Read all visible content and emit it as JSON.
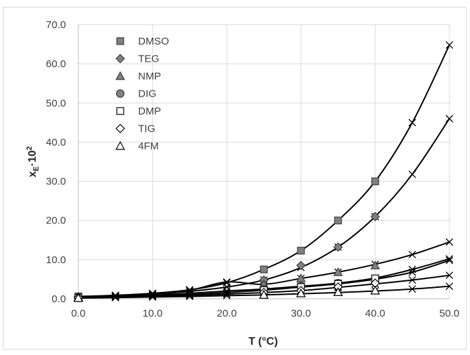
{
  "chart_data": {
    "type": "scatter",
    "xlabel": "T (°C)",
    "ylabel": {
      "base": "x",
      "sub": "E",
      "mid": "·10",
      "sup": "2"
    },
    "xlim": [
      0,
      50
    ],
    "ylim": [
      0,
      70
    ],
    "x_ticks": [
      "0.0",
      "10.0",
      "20.0",
      "30.0",
      "40.0",
      "50.0"
    ],
    "y_ticks": [
      "0.0",
      "10.0",
      "20.0",
      "30.0",
      "40.0",
      "50.0",
      "60.0",
      "70.0"
    ],
    "grid": true,
    "legend_position": "top-left",
    "series": [
      {
        "name": "DMSO",
        "marker": "square",
        "fill": "#808080",
        "points": [
          [
            0,
            0.6
          ],
          [
            25,
            7.5
          ],
          [
            30,
            12.3
          ],
          [
            35,
            20
          ],
          [
            40,
            30
          ]
        ]
      },
      {
        "name": "TEG",
        "marker": "diamond",
        "fill": "#808080",
        "points": [
          [
            0,
            0.5
          ],
          [
            25,
            4.8
          ],
          [
            30,
            8.5
          ],
          [
            35,
            13.2
          ],
          [
            40,
            21
          ]
        ]
      },
      {
        "name": "NMP",
        "marker": "triangle",
        "fill": "#808080",
        "points": [
          [
            0,
            0.4
          ],
          [
            25,
            3.7
          ],
          [
            30,
            5.2
          ],
          [
            35,
            6.8
          ],
          [
            40,
            8.5
          ]
        ]
      },
      {
        "name": "DIG",
        "marker": "circle",
        "fill": "#808080",
        "points": [
          [
            0,
            0.3
          ],
          [
            25,
            2.5
          ],
          [
            30,
            3.2
          ],
          [
            35,
            4.0
          ],
          [
            40,
            5.0
          ]
        ]
      },
      {
        "name": "DMP",
        "marker": "square",
        "fill": "#ffffff",
        "points": [
          [
            0,
            0.3
          ],
          [
            25,
            2.2
          ],
          [
            30,
            3.0
          ],
          [
            35,
            3.8
          ],
          [
            40,
            5.2
          ]
        ]
      },
      {
        "name": "TIG",
        "marker": "diamond",
        "fill": "#ffffff",
        "points": [
          [
            0,
            0.3
          ],
          [
            25,
            1.6
          ],
          [
            30,
            2.1
          ],
          [
            35,
            3.0
          ],
          [
            40,
            4.0
          ]
        ]
      },
      {
        "name": "4FM",
        "marker": "triangle",
        "fill": "#ffffff",
        "points": [
          [
            0,
            0.2
          ],
          [
            25,
            1.0
          ],
          [
            30,
            1.4
          ],
          [
            35,
            1.7
          ],
          [
            40,
            2.1
          ]
        ]
      }
    ],
    "fit_curves": [
      {
        "marker": "x",
        "points": [
          [
            0,
            0.6
          ],
          [
            5,
            0.9
          ],
          [
            10,
            1.4
          ],
          [
            15,
            2.3
          ],
          [
            20,
            4.1
          ],
          [
            25,
            7.5
          ],
          [
            30,
            12.3
          ],
          [
            35,
            20
          ],
          [
            40,
            30
          ],
          [
            45,
            45
          ],
          [
            50,
            64.8
          ]
        ]
      },
      {
        "marker": "x",
        "points": [
          [
            0,
            0.5
          ],
          [
            5,
            0.8
          ],
          [
            10,
            1.2
          ],
          [
            15,
            1.9
          ],
          [
            20,
            3.0
          ],
          [
            25,
            4.8
          ],
          [
            30,
            8.0
          ],
          [
            35,
            13.2
          ],
          [
            40,
            21
          ],
          [
            45,
            31.8
          ],
          [
            50,
            46
          ]
        ]
      },
      {
        "marker": "x",
        "points": [
          [
            0,
            0.5
          ],
          [
            5,
            0.8
          ],
          [
            10,
            1.3
          ],
          [
            15,
            2.2
          ],
          [
            20,
            4.3
          ],
          [
            25,
            3.7
          ],
          [
            30,
            5.2
          ],
          [
            35,
            6.8
          ],
          [
            40,
            8.8
          ],
          [
            45,
            11.3
          ],
          [
            50,
            14.5
          ]
        ]
      },
      {
        "marker": "x",
        "points": [
          [
            0,
            0.3
          ],
          [
            5,
            0.6
          ],
          [
            10,
            0.9
          ],
          [
            15,
            1.4
          ],
          [
            20,
            2.0
          ],
          [
            25,
            2.5
          ],
          [
            30,
            3.2
          ],
          [
            35,
            4.0
          ],
          [
            40,
            5.3
          ],
          [
            45,
            7.5
          ],
          [
            50,
            10.2
          ]
        ]
      },
      {
        "marker": "x",
        "points": [
          [
            0,
            0.3
          ],
          [
            5,
            0.5
          ],
          [
            10,
            0.8
          ],
          [
            15,
            1.1
          ],
          [
            20,
            1.6
          ],
          [
            25,
            2.2
          ],
          [
            30,
            3.0
          ],
          [
            35,
            3.8
          ],
          [
            40,
            5.0
          ],
          [
            45,
            6.8
          ],
          [
            50,
            9.8
          ]
        ]
      },
      {
        "marker": "x",
        "points": [
          [
            0,
            0.3
          ],
          [
            5,
            0.5
          ],
          [
            10,
            0.7
          ],
          [
            15,
            0.9
          ],
          [
            20,
            1.2
          ],
          [
            25,
            1.6
          ],
          [
            30,
            2.1
          ],
          [
            35,
            2.9
          ],
          [
            40,
            3.8
          ],
          [
            45,
            4.8
          ],
          [
            50,
            6.0
          ]
        ]
      },
      {
        "marker": "x",
        "points": [
          [
            0,
            0.2
          ],
          [
            5,
            0.3
          ],
          [
            10,
            0.45
          ],
          [
            15,
            0.6
          ],
          [
            20,
            0.8
          ],
          [
            25,
            1.0
          ],
          [
            30,
            1.3
          ],
          [
            35,
            1.6
          ],
          [
            40,
            2.0
          ],
          [
            45,
            2.5
          ],
          [
            50,
            3.2
          ]
        ]
      }
    ]
  }
}
